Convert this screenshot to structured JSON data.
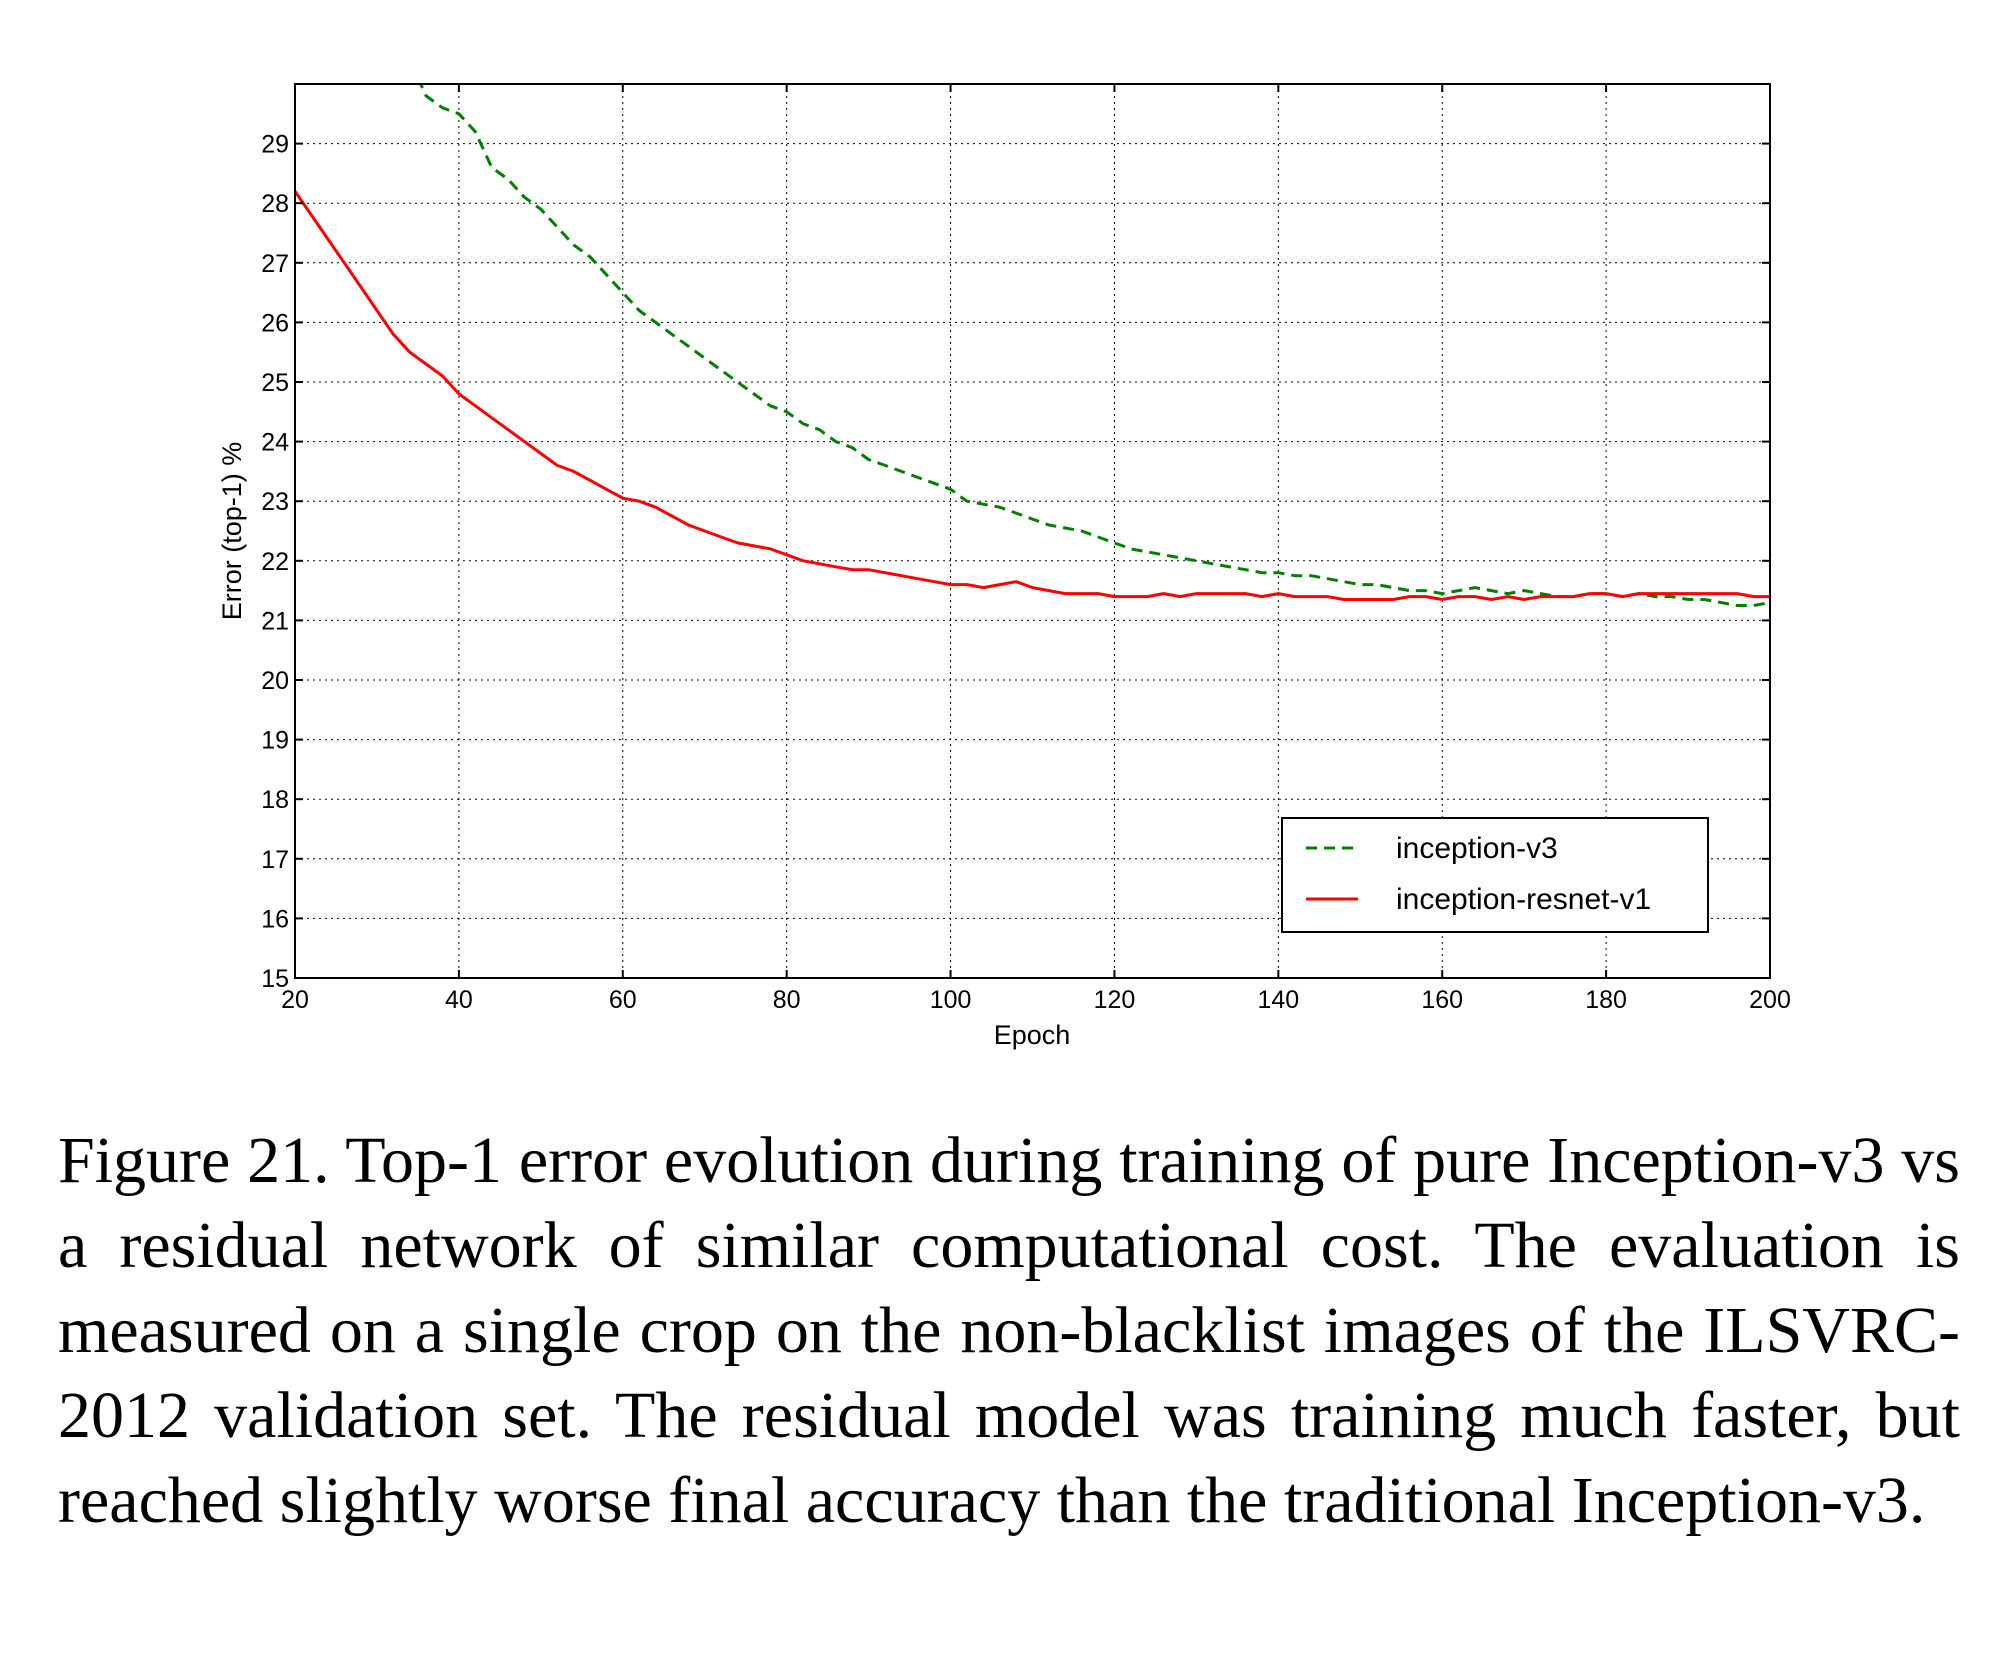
{
  "chart_data": {
    "type": "line",
    "xlabel": "Epoch",
    "ylabel": "Error (top-1) %",
    "xlim": [
      20,
      200
    ],
    "ylim": [
      15,
      30
    ],
    "xticks": [
      20,
      40,
      60,
      80,
      100,
      120,
      140,
      160,
      180,
      200
    ],
    "yticks": [
      15,
      16,
      17,
      18,
      19,
      20,
      21,
      22,
      23,
      24,
      25,
      26,
      27,
      28,
      29
    ],
    "grid": true,
    "legend_position": "lower-right",
    "series": [
      {
        "name": "inception-v3",
        "color": "#008000",
        "style": "dashed",
        "points": [
          [
            35,
            30.1
          ],
          [
            36,
            29.8
          ],
          [
            38,
            29.6
          ],
          [
            40,
            29.5
          ],
          [
            42,
            29.2
          ],
          [
            44,
            28.6
          ],
          [
            46,
            28.4
          ],
          [
            48,
            28.1
          ],
          [
            50,
            27.9
          ],
          [
            52,
            27.6
          ],
          [
            54,
            27.3
          ],
          [
            56,
            27.1
          ],
          [
            58,
            26.8
          ],
          [
            60,
            26.5
          ],
          [
            62,
            26.2
          ],
          [
            64,
            26.0
          ],
          [
            66,
            25.8
          ],
          [
            68,
            25.6
          ],
          [
            70,
            25.4
          ],
          [
            72,
            25.2
          ],
          [
            74,
            25.0
          ],
          [
            76,
            24.8
          ],
          [
            78,
            24.6
          ],
          [
            80,
            24.5
          ],
          [
            82,
            24.3
          ],
          [
            84,
            24.2
          ],
          [
            86,
            24.0
          ],
          [
            88,
            23.9
          ],
          [
            90,
            23.7
          ],
          [
            92,
            23.6
          ],
          [
            94,
            23.5
          ],
          [
            96,
            23.4
          ],
          [
            98,
            23.3
          ],
          [
            100,
            23.2
          ],
          [
            102,
            23.0
          ],
          [
            104,
            22.95
          ],
          [
            106,
            22.9
          ],
          [
            108,
            22.8
          ],
          [
            110,
            22.7
          ],
          [
            112,
            22.6
          ],
          [
            114,
            22.55
          ],
          [
            116,
            22.5
          ],
          [
            118,
            22.4
          ],
          [
            120,
            22.3
          ],
          [
            122,
            22.2
          ],
          [
            124,
            22.15
          ],
          [
            126,
            22.1
          ],
          [
            128,
            22.05
          ],
          [
            130,
            22.0
          ],
          [
            132,
            21.95
          ],
          [
            134,
            21.9
          ],
          [
            136,
            21.85
          ],
          [
            138,
            21.8
          ],
          [
            140,
            21.8
          ],
          [
            142,
            21.75
          ],
          [
            144,
            21.75
          ],
          [
            146,
            21.7
          ],
          [
            148,
            21.65
          ],
          [
            150,
            21.6
          ],
          [
            152,
            21.6
          ],
          [
            154,
            21.55
          ],
          [
            156,
            21.5
          ],
          [
            158,
            21.5
          ],
          [
            160,
            21.45
          ],
          [
            162,
            21.5
          ],
          [
            164,
            21.55
          ],
          [
            166,
            21.5
          ],
          [
            168,
            21.45
          ],
          [
            170,
            21.5
          ],
          [
            172,
            21.45
          ],
          [
            174,
            21.4
          ],
          [
            176,
            21.4
          ],
          [
            178,
            21.45
          ],
          [
            180,
            21.45
          ],
          [
            182,
            21.4
          ],
          [
            184,
            21.45
          ],
          [
            186,
            21.4
          ],
          [
            188,
            21.4
          ],
          [
            190,
            21.35
          ],
          [
            192,
            21.35
          ],
          [
            194,
            21.3
          ],
          [
            196,
            21.25
          ],
          [
            198,
            21.25
          ],
          [
            200,
            21.3
          ]
        ]
      },
      {
        "name": "inception-resnet-v1",
        "color": "#ff0000",
        "style": "solid",
        "points": [
          [
            20,
            28.2
          ],
          [
            22,
            27.8
          ],
          [
            24,
            27.4
          ],
          [
            26,
            27.0
          ],
          [
            28,
            26.6
          ],
          [
            30,
            26.2
          ],
          [
            32,
            25.8
          ],
          [
            34,
            25.5
          ],
          [
            36,
            25.3
          ],
          [
            38,
            25.1
          ],
          [
            40,
            24.8
          ],
          [
            42,
            24.6
          ],
          [
            44,
            24.4
          ],
          [
            46,
            24.2
          ],
          [
            48,
            24.0
          ],
          [
            50,
            23.8
          ],
          [
            52,
            23.6
          ],
          [
            54,
            23.5
          ],
          [
            56,
            23.35
          ],
          [
            58,
            23.2
          ],
          [
            60,
            23.05
          ],
          [
            62,
            23.0
          ],
          [
            64,
            22.9
          ],
          [
            66,
            22.75
          ],
          [
            68,
            22.6
          ],
          [
            70,
            22.5
          ],
          [
            72,
            22.4
          ],
          [
            74,
            22.3
          ],
          [
            76,
            22.25
          ],
          [
            78,
            22.2
          ],
          [
            80,
            22.1
          ],
          [
            82,
            22.0
          ],
          [
            84,
            21.95
          ],
          [
            86,
            21.9
          ],
          [
            88,
            21.85
          ],
          [
            90,
            21.85
          ],
          [
            92,
            21.8
          ],
          [
            94,
            21.75
          ],
          [
            96,
            21.7
          ],
          [
            98,
            21.65
          ],
          [
            100,
            21.6
          ],
          [
            102,
            21.6
          ],
          [
            104,
            21.55
          ],
          [
            106,
            21.6
          ],
          [
            108,
            21.65
          ],
          [
            110,
            21.55
          ],
          [
            112,
            21.5
          ],
          [
            114,
            21.45
          ],
          [
            116,
            21.45
          ],
          [
            118,
            21.45
          ],
          [
            120,
            21.4
          ],
          [
            122,
            21.4
          ],
          [
            124,
            21.4
          ],
          [
            126,
            21.45
          ],
          [
            128,
            21.4
          ],
          [
            130,
            21.45
          ],
          [
            132,
            21.45
          ],
          [
            134,
            21.45
          ],
          [
            136,
            21.45
          ],
          [
            138,
            21.4
          ],
          [
            140,
            21.45
          ],
          [
            142,
            21.4
          ],
          [
            144,
            21.4
          ],
          [
            146,
            21.4
          ],
          [
            148,
            21.35
          ],
          [
            150,
            21.35
          ],
          [
            152,
            21.35
          ],
          [
            154,
            21.35
          ],
          [
            156,
            21.4
          ],
          [
            158,
            21.4
          ],
          [
            160,
            21.35
          ],
          [
            162,
            21.4
          ],
          [
            164,
            21.4
          ],
          [
            166,
            21.35
          ],
          [
            168,
            21.4
          ],
          [
            170,
            21.35
          ],
          [
            172,
            21.4
          ],
          [
            174,
            21.4
          ],
          [
            176,
            21.4
          ],
          [
            178,
            21.45
          ],
          [
            180,
            21.45
          ],
          [
            182,
            21.4
          ],
          [
            184,
            21.45
          ],
          [
            186,
            21.45
          ],
          [
            188,
            21.45
          ],
          [
            190,
            21.45
          ],
          [
            192,
            21.45
          ],
          [
            194,
            21.45
          ],
          [
            196,
            21.45
          ],
          [
            198,
            21.4
          ],
          [
            200,
            21.4
          ]
        ]
      }
    ]
  },
  "caption": {
    "text": "Figure 21. Top-1 error evolution during training of pure Inception-v3 vs a residual network of similar computational cost. The evaluation is measured on a single crop on the non-blacklist images of the ILSVRC-2012 validation set. The residual model was training much faster, but reached slightly worse final accuracy than the traditional Inception-v3."
  }
}
